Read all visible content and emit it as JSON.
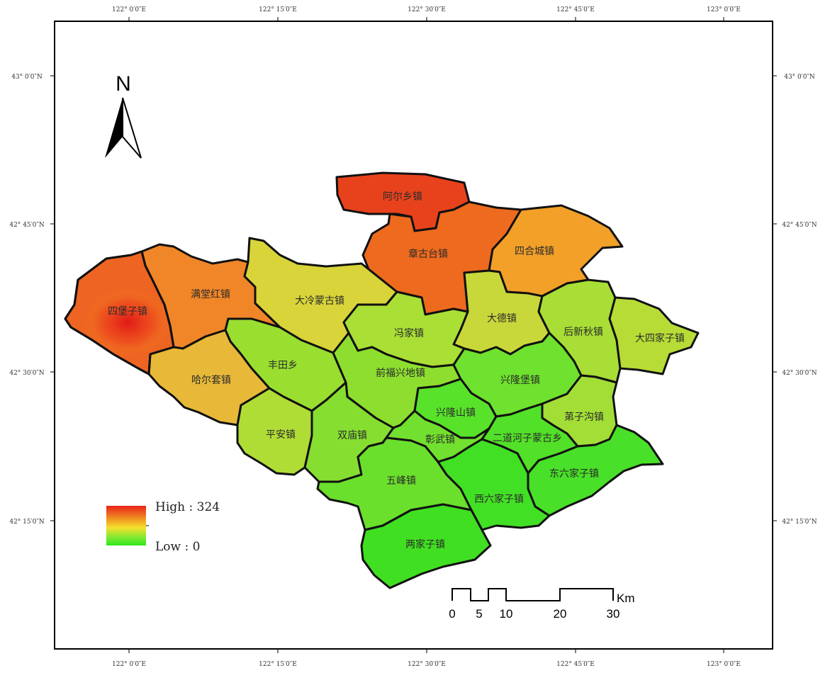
{
  "map": {
    "graticule": {
      "top_labels": [
        "122° 0′0″E",
        "122° 15′0″E",
        "122° 30′0″E",
        "122° 45′0″E",
        "123° 0′0″E"
      ],
      "bottom_labels": [
        "122° 0′0″E",
        "122° 15′0″E",
        "122° 30′0″E",
        "122° 45′0″E",
        "123° 0′0″E"
      ],
      "left_labels": [
        "43° 0′0″N",
        "42° 45′0″N",
        "42° 30′0″N",
        "42° 15′0″N"
      ],
      "right_labels": [
        "43° 0′0″N",
        "42° 45′0″N",
        "42° 30′0″N",
        "42° 15′0″N"
      ]
    },
    "north_arrow": {
      "label": "N"
    },
    "towns": [
      {
        "id": "aerxiang",
        "label": "阿尔乡镇"
      },
      {
        "id": "zhanggutai",
        "label": "章古台镇"
      },
      {
        "id": "siheCheng",
        "label": "四合城镇"
      },
      {
        "id": "mantanghong",
        "label": "满堂红镇"
      },
      {
        "id": "sibaozi",
        "label": "四堡子镇"
      },
      {
        "id": "daleng",
        "label": "大冷蒙古镇"
      },
      {
        "id": "dade",
        "label": "大德镇"
      },
      {
        "id": "houxinqiu",
        "label": "后新秋镇"
      },
      {
        "id": "dasijiazi",
        "label": "大四家子镇"
      },
      {
        "id": "fengjia",
        "label": "冯家镇"
      },
      {
        "id": "fengtian",
        "label": "丰田乡"
      },
      {
        "id": "haersao",
        "label": "哈尔套镇"
      },
      {
        "id": "qianfu",
        "label": "前福兴地镇"
      },
      {
        "id": "xinglongbao",
        "label": "兴隆堡镇"
      },
      {
        "id": "xinglongshan",
        "label": "兴隆山镇"
      },
      {
        "id": "dizigou",
        "label": "苐子沟镇"
      },
      {
        "id": "pingan",
        "label": "平安镇"
      },
      {
        "id": "shuangmiao",
        "label": "双庙镇"
      },
      {
        "id": "zhangwu",
        "label": "彰武镇"
      },
      {
        "id": "erdaohe",
        "label": "二道河子蒙古乡"
      },
      {
        "id": "wufeng",
        "label": "五峰镇"
      },
      {
        "id": "dongliu",
        "label": "东六家子镇"
      },
      {
        "id": "xiliu",
        "label": "西六家子镇"
      },
      {
        "id": "liangjia",
        "label": "两家子镇"
      }
    ],
    "legend": {
      "high_label": "High : 324",
      "low_label": "Low : 0",
      "high": 324,
      "low": 0,
      "colors": [
        "#e8221a",
        "#f08a20",
        "#f4e02a",
        "#7ee832",
        "#2ee61e"
      ]
    },
    "scale_bar": {
      "ticks": [
        "0",
        "5",
        "10",
        "20",
        "30"
      ],
      "unit": "Km"
    },
    "colors": {
      "frame": "#000000",
      "boundary": "#111111"
    }
  }
}
